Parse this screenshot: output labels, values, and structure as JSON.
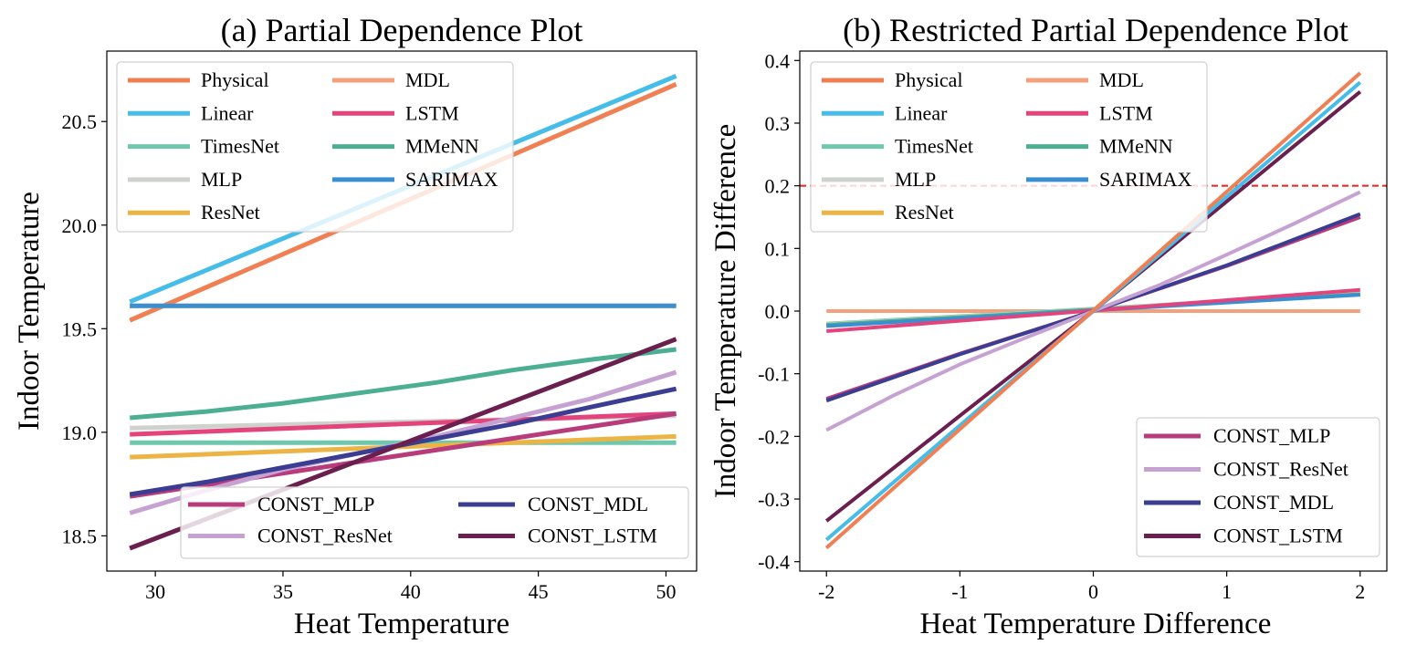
{
  "chart_data": [
    {
      "type": "line",
      "title": "(a) Partial Dependence Plot",
      "xlabel": "Heat Temperature",
      "ylabel": "Indoor Temperature",
      "xlim": [
        28.1,
        51.2
      ],
      "ylim": [
        18.33,
        20.84
      ],
      "xticks": [
        30,
        35,
        40,
        45,
        50
      ],
      "yticks": [
        18.5,
        19.0,
        19.5,
        20.0,
        20.5
      ],
      "ytick_labels": [
        "18.5",
        "19.0",
        "19.5",
        "20.0",
        "20.5"
      ],
      "grid": false,
      "legends": [
        {
          "placement": "top-left",
          "columns": 2,
          "entries": [
            "Physical",
            "Linear",
            "TimesNet",
            "MLP",
            "ResNet",
            "MDL",
            "LSTM",
            "MMeNN",
            "SARIMAX"
          ]
        },
        {
          "placement": "lower-right",
          "columns": 2,
          "entries": [
            "CONST_MLP",
            "CONST_ResNet",
            "CONST_MDL",
            "CONST_LSTM"
          ]
        }
      ],
      "series": [
        {
          "name": "Physical",
          "color": "#f07f53",
          "x": [
            29,
            50.4
          ],
          "y": [
            19.54,
            20.68
          ]
        },
        {
          "name": "Linear",
          "color": "#45bde8",
          "x": [
            29,
            50.4
          ],
          "y": [
            19.63,
            20.72
          ]
        },
        {
          "name": "TimesNet",
          "color": "#6fc8ae",
          "x": [
            29,
            50.4
          ],
          "y": [
            18.95,
            18.95
          ]
        },
        {
          "name": "MLP",
          "color": "#cdd3cc",
          "x": [
            29,
            50.4
          ],
          "y": [
            19.02,
            19.08
          ]
        },
        {
          "name": "ResNet",
          "color": "#ebb444",
          "x": [
            29,
            50.4
          ],
          "y": [
            18.88,
            18.98
          ]
        },
        {
          "name": "MDL",
          "color": "#f3a17c",
          "x": [
            29,
            50.4
          ],
          "y": [
            19.61,
            19.61
          ]
        },
        {
          "name": "LSTM",
          "color": "#e4447c",
          "x": [
            29,
            50.4
          ],
          "y": [
            18.99,
            19.09
          ]
        },
        {
          "name": "MMeNN",
          "color": "#4caf91",
          "x": [
            29,
            32,
            35,
            38,
            41,
            44,
            47,
            50.4
          ],
          "y": [
            19.07,
            19.1,
            19.14,
            19.19,
            19.24,
            19.3,
            19.35,
            19.4
          ]
        },
        {
          "name": "SARIMAX",
          "color": "#3a8fd1",
          "x": [
            29,
            50.4
          ],
          "y": [
            19.61,
            19.61
          ]
        },
        {
          "name": "CONST_MLP",
          "color": "#b83c7b",
          "x": [
            29,
            50.4
          ],
          "y": [
            18.69,
            19.09
          ]
        },
        {
          "name": "CONST_ResNet",
          "color": "#c6a2d2",
          "x": [
            29,
            32,
            35,
            38,
            41,
            44,
            47,
            50.4
          ],
          "y": [
            18.61,
            18.72,
            18.82,
            18.9,
            18.98,
            19.07,
            19.16,
            19.29
          ]
        },
        {
          "name": "CONST_MDL",
          "color": "#3a3d91",
          "x": [
            29,
            32,
            35,
            38,
            41,
            44,
            47,
            50.4
          ],
          "y": [
            18.7,
            18.76,
            18.83,
            18.9,
            18.97,
            19.04,
            19.12,
            19.21
          ]
        },
        {
          "name": "CONST_LSTM",
          "color": "#6b1f4e",
          "x": [
            29,
            50.4
          ],
          "y": [
            18.44,
            19.45
          ]
        }
      ]
    },
    {
      "type": "line",
      "title": "(b) Restricted Partial Dependence Plot",
      "xlabel": "Heat Temperature Difference",
      "ylabel": "Indoor Temperature Difference",
      "xlim": [
        -2.2,
        2.2
      ],
      "ylim": [
        -0.415,
        0.415
      ],
      "xticks": [
        -2,
        -1,
        0,
        1,
        2
      ],
      "yticks": [
        -0.4,
        -0.3,
        -0.2,
        -0.1,
        0.0,
        0.1,
        0.2,
        0.3,
        0.4
      ],
      "ytick_labels": [
        "-0.4",
        "-0.3",
        "-0.2",
        "-0.1",
        "0.0",
        "0.1",
        "0.2",
        "0.3",
        "0.4"
      ],
      "grid": false,
      "reference_line": {
        "y": 0.2,
        "color": "#e8201e",
        "style": "dashed"
      },
      "legends": [
        {
          "placement": "top-left",
          "columns": 2,
          "entries": [
            "Physical",
            "Linear",
            "TimesNet",
            "MLP",
            "ResNet",
            "MDL",
            "LSTM",
            "MMeNN",
            "SARIMAX"
          ]
        },
        {
          "placement": "lower-right",
          "columns": 1,
          "entries": [
            "CONST_MLP",
            "CONST_ResNet",
            "CONST_MDL",
            "CONST_LSTM"
          ]
        }
      ],
      "series": [
        {
          "name": "MDL",
          "color": "#f3a17c",
          "x": [
            -2,
            2
          ],
          "y": [
            0.0,
            0.0
          ]
        },
        {
          "name": "TimesNet",
          "color": "#6fc8ae",
          "x": [
            -2,
            2
          ],
          "y": [
            -0.02,
            0.028
          ]
        },
        {
          "name": "MLP",
          "color": "#cdd3cc",
          "x": [
            -2,
            2
          ],
          "y": [
            -0.021,
            0.028
          ]
        },
        {
          "name": "ResNet",
          "color": "#ebb444",
          "x": [
            -2,
            2
          ],
          "y": [
            -0.022,
            0.027
          ]
        },
        {
          "name": "MMeNN",
          "color": "#4caf91",
          "x": [
            -2,
            2
          ],
          "y": [
            -0.022,
            0.027
          ]
        },
        {
          "name": "SARIMAX",
          "color": "#3a8fd1",
          "x": [
            -2,
            2
          ],
          "y": [
            -0.024,
            0.026
          ]
        },
        {
          "name": "LSTM",
          "color": "#e4447c",
          "x": [
            -2,
            2
          ],
          "y": [
            -0.032,
            0.034
          ]
        },
        {
          "name": "CONST_MLP",
          "color": "#b83c7b",
          "x": [
            -2,
            -1,
            0,
            1,
            2
          ],
          "y": [
            -0.14,
            -0.068,
            0.0,
            0.072,
            0.15
          ]
        },
        {
          "name": "CONST_MDL",
          "color": "#3a3d91",
          "x": [
            -2,
            -1,
            0,
            1,
            2
          ],
          "y": [
            -0.143,
            -0.069,
            0.0,
            0.073,
            0.155
          ]
        },
        {
          "name": "CONST_ResNet",
          "color": "#c6a2d2",
          "x": [
            -2,
            -1.5,
            -1,
            -0.5,
            0,
            0.5,
            1,
            1.5,
            2
          ],
          "y": [
            -0.19,
            -0.135,
            -0.085,
            -0.042,
            0.0,
            0.042,
            0.09,
            0.139,
            0.19
          ]
        },
        {
          "name": "CONST_LSTM",
          "color": "#6b1f4e",
          "x": [
            -2,
            -1,
            0,
            1,
            2
          ],
          "y": [
            -0.335,
            -0.167,
            0.0,
            0.175,
            0.35
          ]
        },
        {
          "name": "Linear",
          "color": "#45bde8",
          "x": [
            -2,
            2
          ],
          "y": [
            -0.365,
            0.365
          ]
        },
        {
          "name": "Physical",
          "color": "#f07f53",
          "x": [
            -2,
            2
          ],
          "y": [
            -0.378,
            0.38
          ]
        }
      ]
    }
  ]
}
